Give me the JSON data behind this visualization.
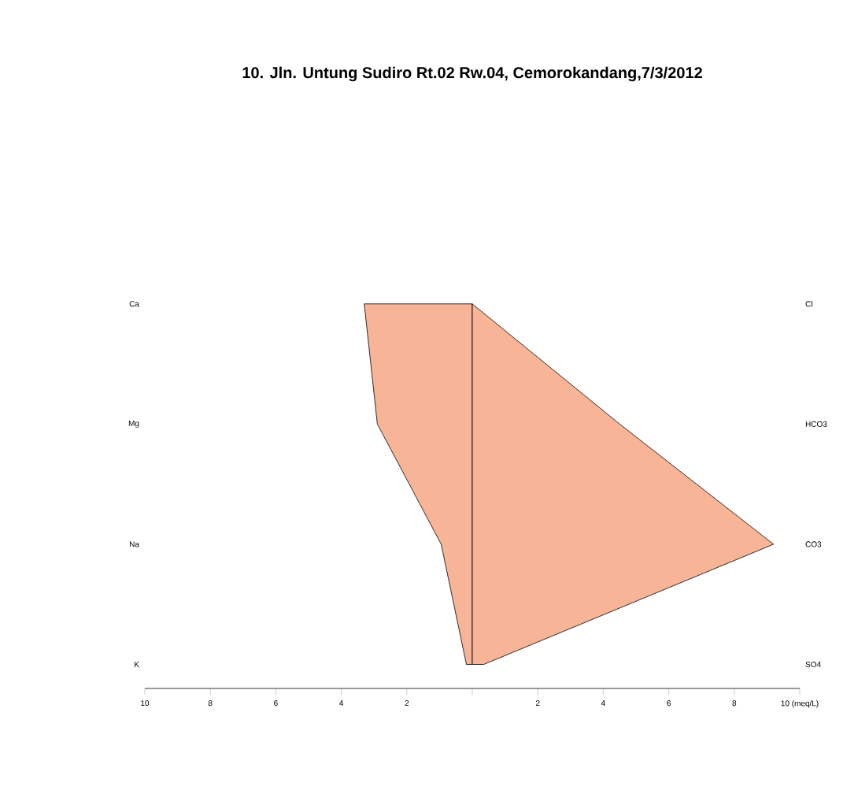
{
  "chart_data": {
    "type": "area",
    "orientation": "horizontal",
    "title": "10. Jln. Untung Sudiro Rt.02 Rw.04, Cemorokandang,7/3/2012",
    "categories": [
      "Ca",
      "Mg",
      "Na",
      "K"
    ],
    "y2_categories": [
      "Cl",
      "HCO3",
      "CO3",
      "SO4"
    ],
    "series": [
      {
        "color": "#f8b496",
        "values": [
          -3.3,
          -2.9,
          -0.95,
          -0.18
        ]
      },
      {
        "color": "#f8b496",
        "values": [
          0,
          4.5,
          9.2,
          0.35
        ]
      }
    ],
    "xlim": [
      -10,
      10
    ],
    "xticks": [
      {
        "value": -10,
        "label": "10"
      },
      {
        "value": -8,
        "label": "8"
      },
      {
        "value": -6,
        "label": "6"
      },
      {
        "value": -4,
        "label": "4"
      },
      {
        "value": -2,
        "label": "2"
      },
      {
        "value": 0,
        "label": null
      },
      2,
      4,
      6,
      8,
      {
        "value": 10,
        "label": "10 (meq/L)"
      }
    ],
    "grid": false
  }
}
